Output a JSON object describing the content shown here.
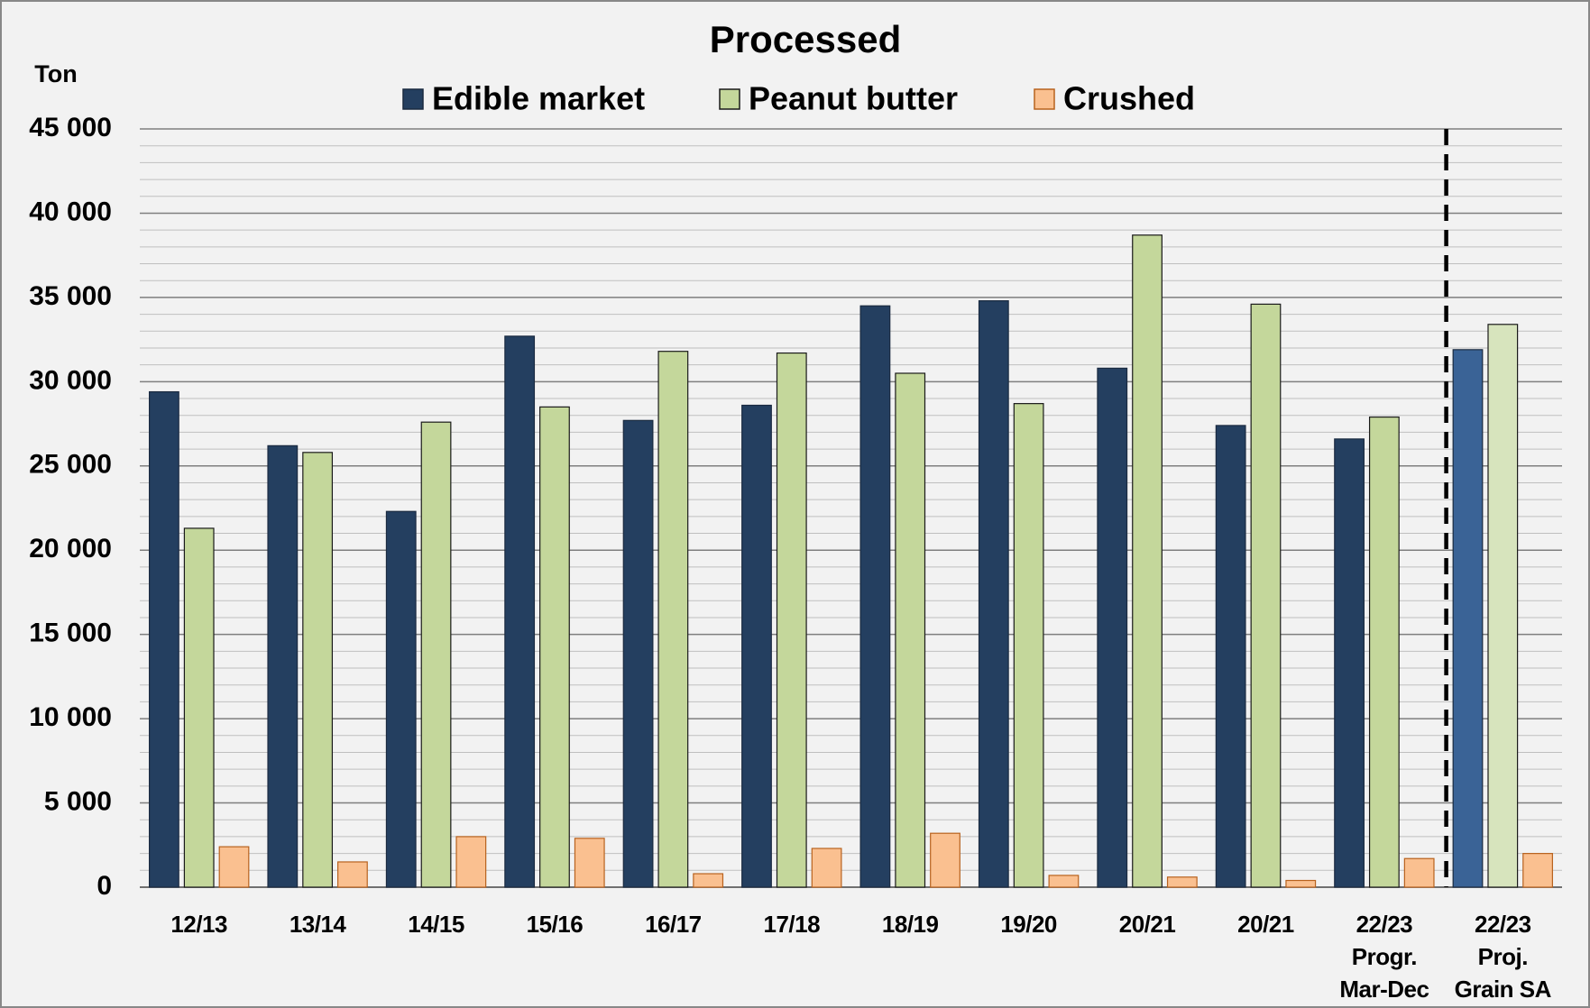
{
  "chart_data": {
    "type": "bar",
    "title": "Processed",
    "y_axis_label": "Ton",
    "categories": [
      "12/13",
      "13/14",
      "14/15",
      "15/16",
      "16/17",
      "17/18",
      "18/19",
      "19/20",
      "20/21",
      "20/21",
      "22/23\nProgr.\nMar-Dec",
      "22/23\nProj.\nGrain SA"
    ],
    "series": [
      {
        "name": "Edible market",
        "color": "#243f60",
        "projection_color": "#3a6396",
        "stroke": "#1a2a40",
        "values": [
          29400,
          26200,
          22300,
          32700,
          27700,
          28600,
          34500,
          34800,
          30800,
          27400,
          26600,
          31900
        ]
      },
      {
        "name": "Peanut butter",
        "color": "#c4d79b",
        "projection_color": "#d7e4bd",
        "stroke": "#1a1a1a",
        "values": [
          21300,
          25800,
          27600,
          28500,
          31800,
          31700,
          30500,
          28700,
          38700,
          34600,
          27900,
          33400
        ]
      },
      {
        "name": "Crushed",
        "color": "#fac090",
        "projection_color": "#fac090",
        "stroke": "#b8621e",
        "values": [
          2400,
          1500,
          3000,
          2900,
          800,
          2300,
          3200,
          700,
          600,
          400,
          1700,
          2000
        ]
      }
    ],
    "ylim": [
      0,
      45000
    ],
    "yticks": [
      {
        "value": 0,
        "label": "0"
      },
      {
        "value": 5000,
        "label": "5 000"
      },
      {
        "value": 10000,
        "label": "10 000"
      },
      {
        "value": 15000,
        "label": "15 000"
      },
      {
        "value": 20000,
        "label": "20 000"
      },
      {
        "value": 25000,
        "label": "25 000"
      },
      {
        "value": 30000,
        "label": "30 000"
      },
      {
        "value": 35000,
        "label": "35 000"
      },
      {
        "value": 40000,
        "label": "40 000"
      },
      {
        "value": 45000,
        "label": "45 000"
      }
    ],
    "minor_grid_step": 1000,
    "grid": true,
    "legend": "top"
  }
}
